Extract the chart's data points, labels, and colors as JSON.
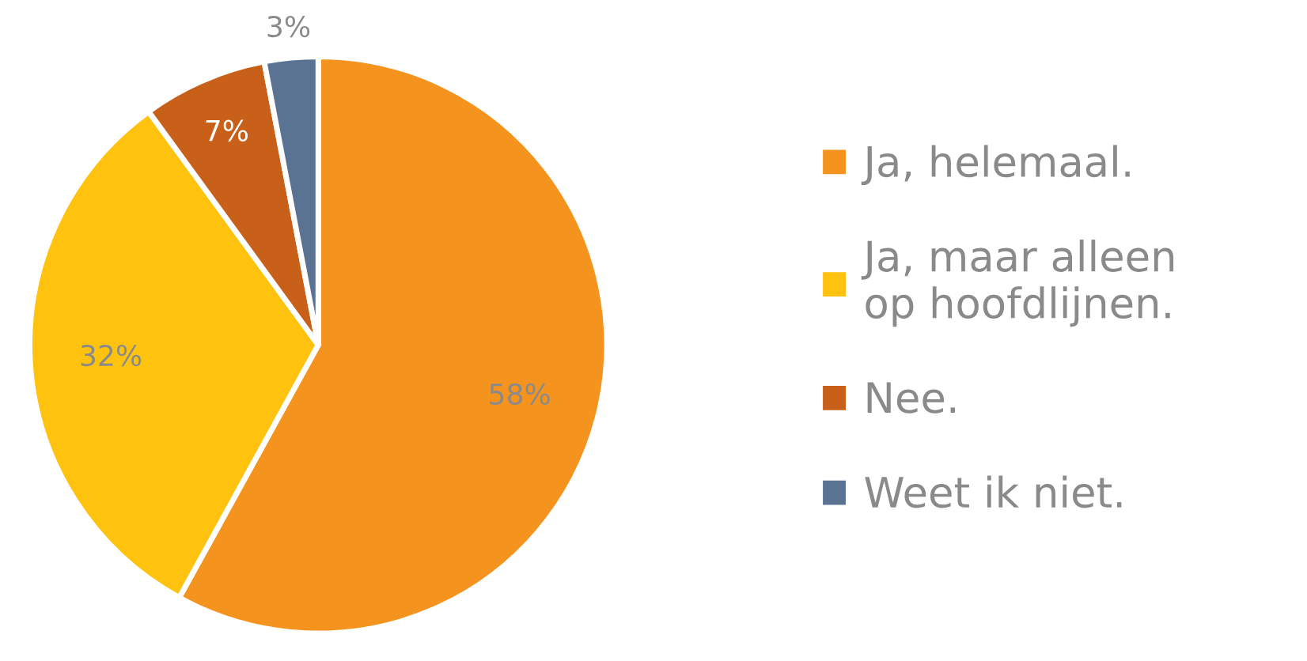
{
  "chart_data": {
    "type": "pie",
    "categories": [
      "Ja, helemaal.",
      "Ja, maar alleen\nop hoofdlijnen.",
      "Nee.",
      "Weet ik niet."
    ],
    "values": [
      58,
      32,
      7,
      3
    ],
    "colors": [
      "#f5931f",
      "#ffc20e",
      "#c8601a",
      "#5b7392"
    ],
    "value_labels": [
      "58%",
      "32%",
      "7%",
      "3%"
    ],
    "legend": "right"
  }
}
